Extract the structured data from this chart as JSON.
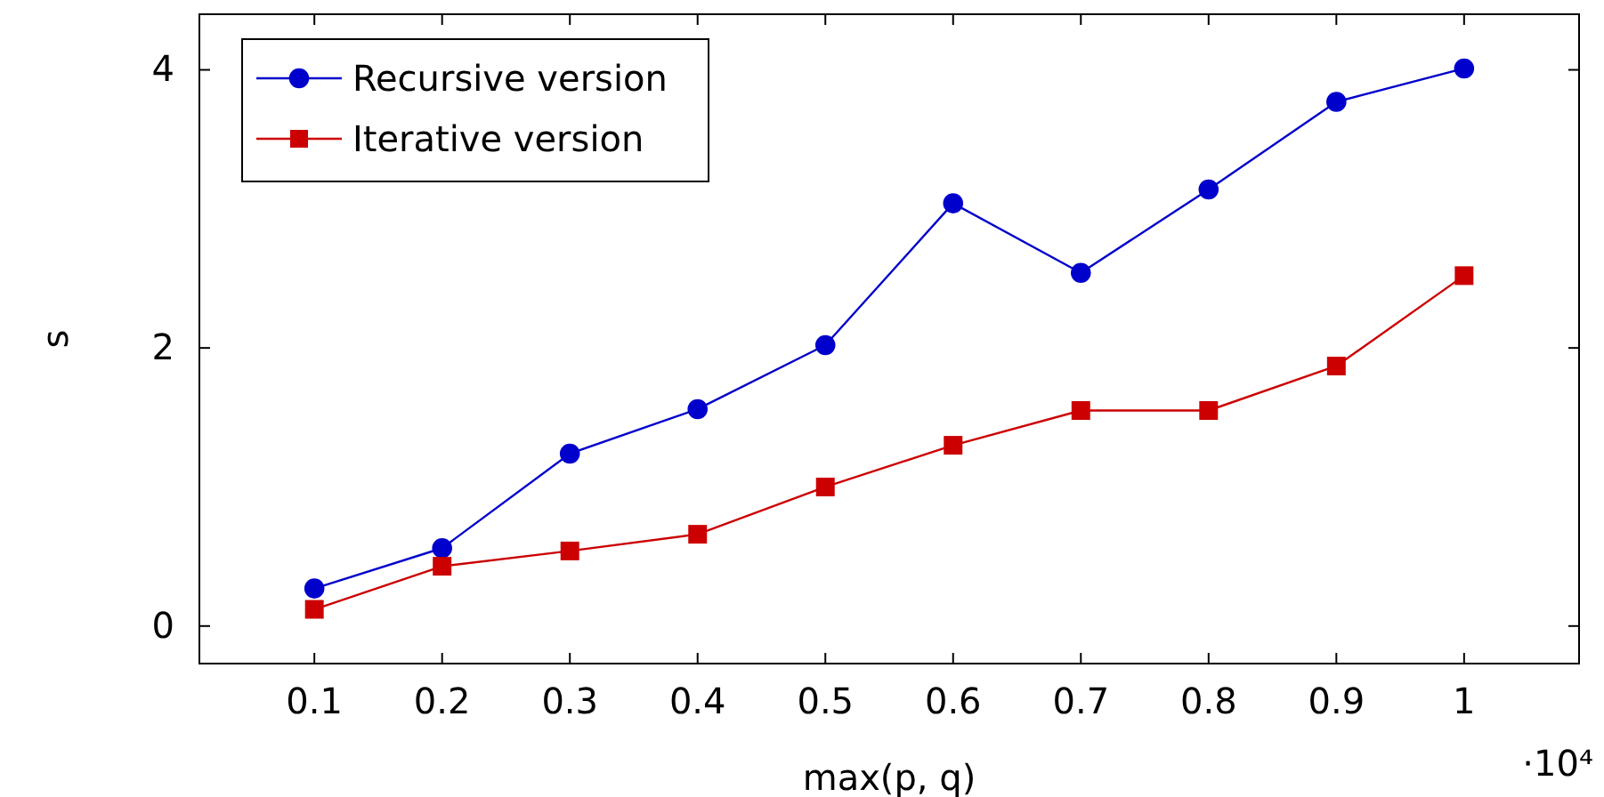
{
  "chart_data": {
    "type": "line",
    "xlabel": "max(p, q)",
    "ylabel": "s",
    "x": [
      0.1,
      0.2,
      0.3,
      0.4,
      0.5,
      0.6,
      0.7,
      0.8,
      0.9,
      1
    ],
    "series": [
      {
        "name": "Recursive version",
        "color": "#0000cc",
        "marker": "circle",
        "values": [
          0.27,
          0.56,
          1.24,
          1.56,
          2.02,
          3.04,
          2.54,
          3.14,
          3.77,
          4.01
        ]
      },
      {
        "name": "Iterative version",
        "color": "#cc0000",
        "marker": "square",
        "values": [
          0.12,
          0.43,
          0.54,
          0.66,
          1.0,
          1.3,
          1.55,
          1.55,
          1.87,
          2.52
        ]
      }
    ],
    "xlim": [
      0.01,
      1.09
    ],
    "ylim": [
      -0.27,
      4.4
    ],
    "xticks": [
      0.1,
      0.2,
      0.3,
      0.4,
      0.5,
      0.6,
      0.7,
      0.8,
      0.9,
      1
    ],
    "yticks": [
      0,
      2,
      4
    ],
    "annotations": [
      "·10⁴"
    ],
    "legend": "top left",
    "grid": false
  }
}
